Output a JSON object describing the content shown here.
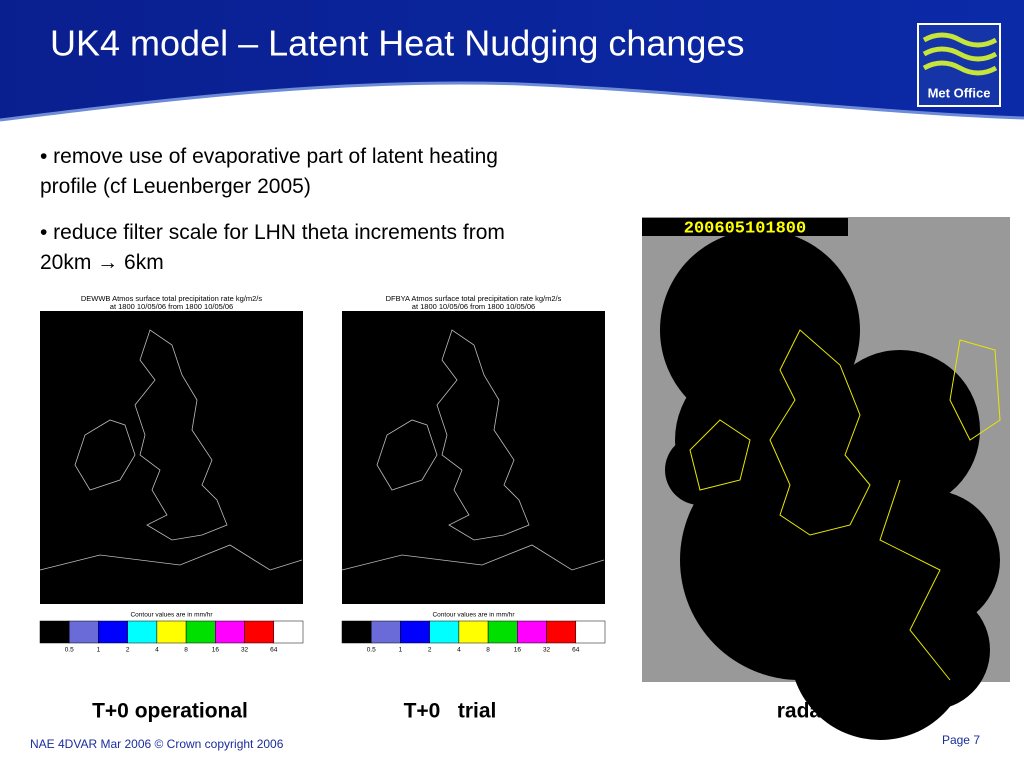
{
  "header": {
    "title": "UK4 model – Latent Heat Nudging changes"
  },
  "logo": "Met Office",
  "bullets": [
    "remove use of evaporative part of latent heating profile (cf Leuenberger 2005)",
    "reduce filter scale for LHN theta increments from 20km → 6km"
  ],
  "legend_colors": [
    "#000000",
    "#6a6ad8",
    "#0000ff",
    "#00ffff",
    "#ffff00",
    "#00e000",
    "#ff00ff",
    "#ff0000",
    "#ffffff"
  ],
  "panels": [
    {
      "title": "DEWWB Atmos surface total precipitation rate kg/m2/s",
      "subtitle": "at 1800 10/05/06 from 1800 10/05/06",
      "legend_title": "Contour values are in mm/hr",
      "legend_labels": [
        0.5,
        1,
        2,
        4,
        8,
        16,
        32,
        64
      ],
      "caption": "T+0 operational"
    },
    {
      "title": "DFBYA Atmos surface total precipitation rate kg/m2/s",
      "subtitle": "at 1800 10/05/06 from 1800 10/05/06",
      "legend_title": "Contour values are in mm/hr",
      "legend_labels": [
        0.5,
        1,
        2,
        4,
        8,
        16,
        32,
        64
      ],
      "caption": "T+0   trial"
    }
  ],
  "radar": {
    "timestamp": "200605101800",
    "caption": "radar"
  },
  "footer": {
    "text": "NAE 4DVAR Mar 2006 © Crown copyright 2006",
    "page": "Page 7"
  }
}
